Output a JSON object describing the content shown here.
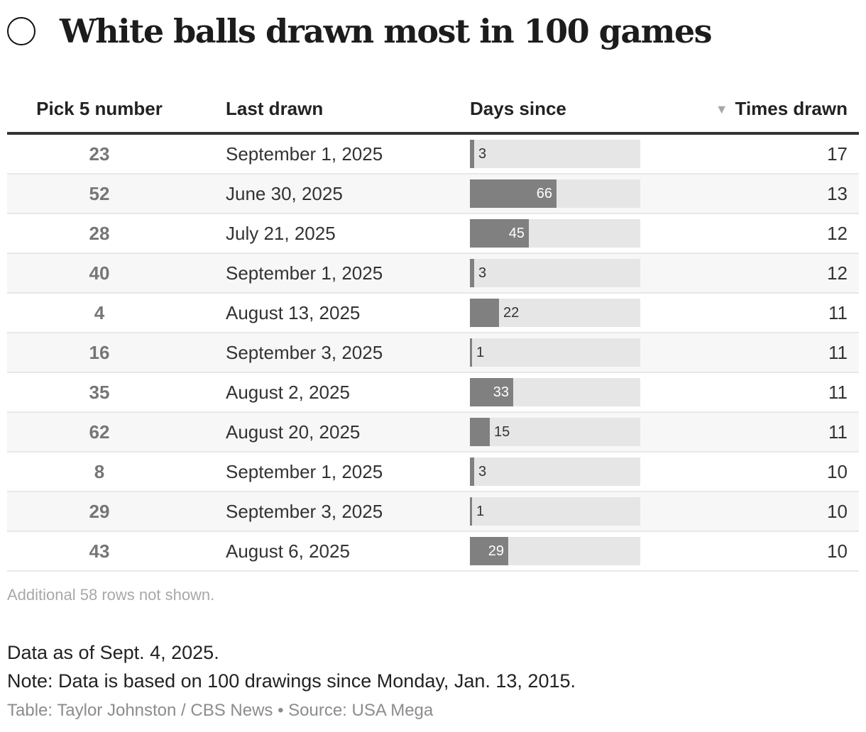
{
  "title": "White balls drawn most in 100 games",
  "icon": "circle-icon",
  "columns": {
    "pick": "Pick 5 number",
    "last_drawn": "Last drawn",
    "days_since": "Days since",
    "times_drawn": "Times drawn",
    "sort_indicator": "▼"
  },
  "colors": {
    "bar_fill": "#808080",
    "bar_track": "#e6e6e6",
    "row_alt": "#f7f7f7"
  },
  "footer": {
    "more_rows": "Additional 58 rows not shown.",
    "data_as_of": "Data as of Sept. 4, 2025.",
    "note": "Note: Data is based on 100 drawings since Monday, Jan. 13, 2015.",
    "credit": "Table: Taylor Johnston / CBS News • Source: USA Mega"
  },
  "chart_data": {
    "type": "table",
    "title": "White balls drawn most in 100 games",
    "columns": [
      "Pick 5 number",
      "Last drawn",
      "Days since",
      "Times drawn"
    ],
    "days_since_max": 66,
    "rows": [
      {
        "pick": "23",
        "last_drawn": "September 1, 2025",
        "days_since": 3,
        "times_drawn": "17"
      },
      {
        "pick": "52",
        "last_drawn": "June 30, 2025",
        "days_since": 66,
        "times_drawn": "13"
      },
      {
        "pick": "28",
        "last_drawn": "July 21, 2025",
        "days_since": 45,
        "times_drawn": "12"
      },
      {
        "pick": "40",
        "last_drawn": "September 1, 2025",
        "days_since": 3,
        "times_drawn": "12"
      },
      {
        "pick": "4",
        "last_drawn": "August 13, 2025",
        "days_since": 22,
        "times_drawn": "11"
      },
      {
        "pick": "16",
        "last_drawn": "September 3, 2025",
        "days_since": 1,
        "times_drawn": "11"
      },
      {
        "pick": "35",
        "last_drawn": "August 2, 2025",
        "days_since": 33,
        "times_drawn": "11"
      },
      {
        "pick": "62",
        "last_drawn": "August 20, 2025",
        "days_since": 15,
        "times_drawn": "11"
      },
      {
        "pick": "8",
        "last_drawn": "September 1, 2025",
        "days_since": 3,
        "times_drawn": "10"
      },
      {
        "pick": "29",
        "last_drawn": "September 3, 2025",
        "days_since": 1,
        "times_drawn": "10"
      },
      {
        "pick": "43",
        "last_drawn": "August 6, 2025",
        "days_since": 29,
        "times_drawn": "10"
      }
    ]
  }
}
